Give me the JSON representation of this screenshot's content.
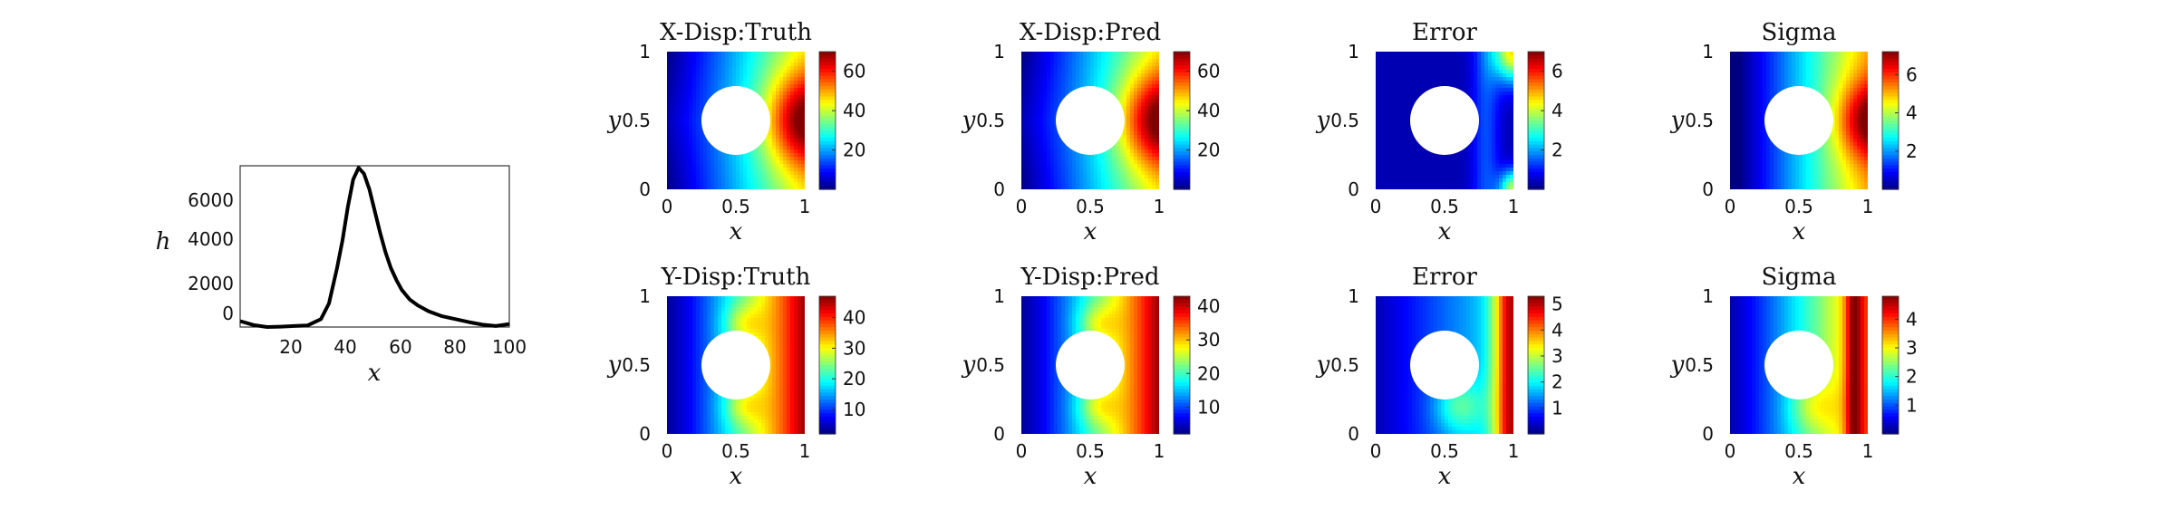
{
  "chart_data": [
    {
      "type": "line",
      "xlabel": "x",
      "ylabel": "h",
      "xlim": [
        0,
        100
      ],
      "ylim": [
        -500,
        7700
      ],
      "xticks": [
        "20",
        "40",
        "60",
        "80",
        "100"
      ],
      "yticks": [
        "0",
        "2000",
        "4000",
        "6000"
      ],
      "series": [
        {
          "x": [
            0,
            5,
            10,
            15,
            20,
            25,
            30,
            33,
            36,
            38,
            40,
            42,
            44,
            46,
            48,
            50,
            52,
            54,
            56,
            58,
            60,
            63,
            66,
            70,
            75,
            80,
            85,
            90,
            95,
            100
          ],
          "values": [
            -200,
            -400,
            -500,
            -480,
            -450,
            -420,
            -100,
            700,
            2500,
            3900,
            5600,
            7000,
            7600,
            7300,
            6500,
            5400,
            4300,
            3300,
            2500,
            1900,
            1400,
            900,
            600,
            300,
            50,
            -100,
            -250,
            -380,
            -450,
            -350
          ]
        }
      ]
    },
    {
      "type": "heatmap",
      "title": "X-Disp:Truth",
      "xlabel": "x",
      "ylabel": "y",
      "colorbar_ticks": [
        "20",
        "40",
        "60"
      ],
      "colorbar_range": [
        0,
        70
      ],
      "field": "x-displacement",
      "value_range": [
        5,
        70
      ]
    },
    {
      "type": "heatmap",
      "title": "X-Disp:Pred",
      "xlabel": "x",
      "ylabel": "y",
      "colorbar_ticks": [
        "20",
        "40",
        "60"
      ],
      "colorbar_range": [
        0,
        70
      ],
      "field": "x-displacement",
      "value_range": [
        5,
        70
      ]
    },
    {
      "type": "heatmap",
      "title": "Error",
      "xlabel": "x",
      "ylabel": "y",
      "colorbar_ticks": [
        "2",
        "4",
        "6"
      ],
      "colorbar_range": [
        0,
        7
      ],
      "field": "x-error",
      "value_range": [
        0.2,
        6.5
      ]
    },
    {
      "type": "heatmap",
      "title": "Sigma",
      "xlabel": "x",
      "ylabel": "y",
      "colorbar_ticks": [
        "2",
        "4",
        "6"
      ],
      "colorbar_range": [
        0,
        7.2
      ],
      "field": "x-sigma",
      "value_range": [
        0.1,
        7.2
      ]
    },
    {
      "type": "heatmap",
      "title": "Y-Disp:Truth",
      "xlabel": "x",
      "ylabel": "y",
      "colorbar_ticks": [
        "10",
        "20",
        "30",
        "40"
      ],
      "colorbar_range": [
        2,
        47
      ],
      "field": "y-displacement",
      "value_range": [
        3,
        46
      ]
    },
    {
      "type": "heatmap",
      "title": "Y-Disp:Pred",
      "xlabel": "x",
      "ylabel": "y",
      "colorbar_ticks": [
        "10",
        "20",
        "30",
        "40"
      ],
      "colorbar_range": [
        2,
        43
      ],
      "field": "y-displacement",
      "value_range": [
        3,
        42
      ]
    },
    {
      "type": "heatmap",
      "title": "Error",
      "xlabel": "x",
      "ylabel": "y",
      "colorbar_ticks": [
        "1",
        "2",
        "3",
        "4",
        "5"
      ],
      "colorbar_range": [
        0,
        5.3
      ],
      "field": "y-error",
      "value_range": [
        0.1,
        5.2
      ]
    },
    {
      "type": "heatmap",
      "title": "Sigma",
      "xlabel": "x",
      "ylabel": "y",
      "colorbar_ticks": [
        "1",
        "2",
        "3",
        "4"
      ],
      "colorbar_range": [
        0,
        4.8
      ],
      "field": "y-sigma",
      "value_range": [
        0.1,
        4.7
      ]
    }
  ],
  "panel_axis": {
    "xticks": [
      "0",
      "0.5",
      "1"
    ],
    "yticks": [
      "0",
      "0.5",
      "1"
    ],
    "xlim": [
      0,
      1
    ],
    "ylim": [
      0,
      1
    ],
    "hole_center": [
      0.5,
      0.5
    ],
    "hole_radius": 0.25
  },
  "colormap": "jet"
}
